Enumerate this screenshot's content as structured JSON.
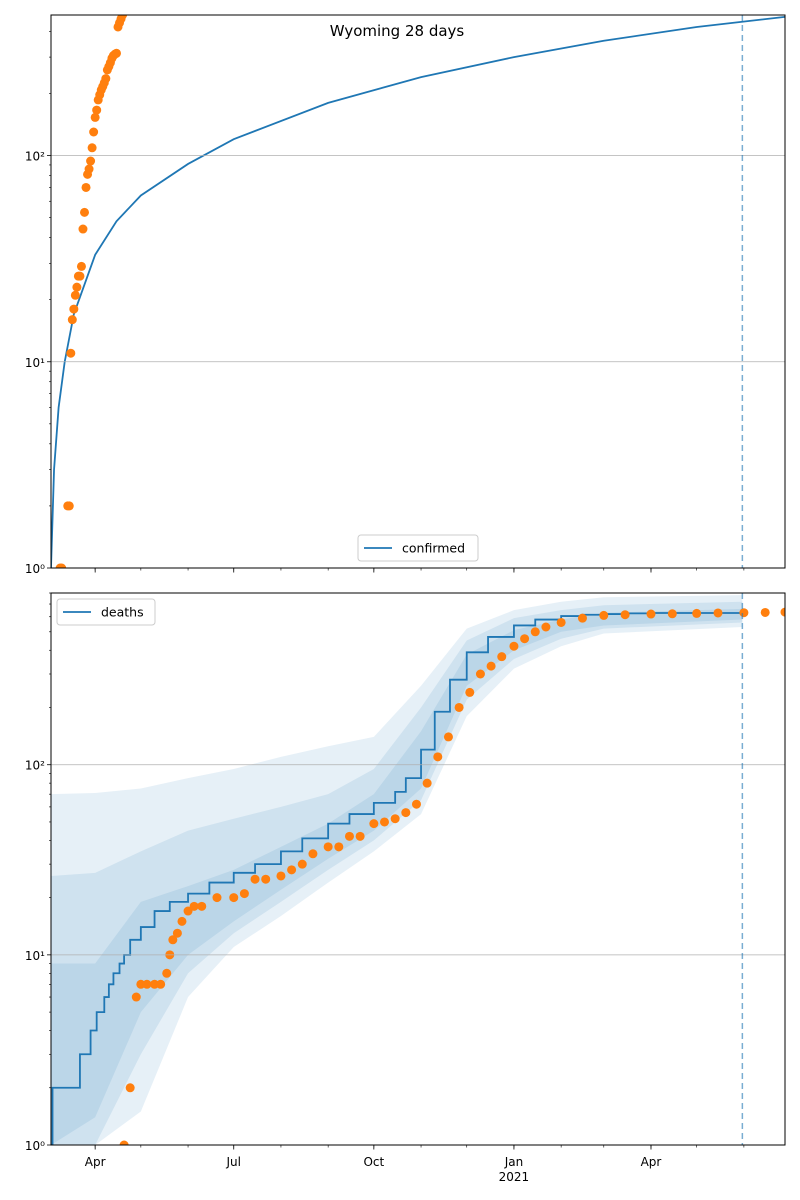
{
  "title": "Wyoming 28 days",
  "colors": {
    "line": "#1f77b4",
    "points": "#ff7f0e",
    "band": "#1f77b4",
    "grid": "#b0b0b0",
    "frame": "#000000"
  },
  "x_axis": {
    "tick_labels": [
      "Apr",
      "Jul",
      "Oct",
      "Jan",
      "Apr"
    ],
    "tick_dates": [
      "2020-04-01",
      "2020-07-01",
      "2020-10-01",
      "2021-01-01",
      "2021-04-01"
    ],
    "year_label": "2021",
    "range": [
      "2020-03-03",
      "2021-06-28"
    ],
    "forecast_date": "2021-05-31"
  },
  "chart_data": [
    {
      "type": "line",
      "title": "Wyoming 28 days",
      "yscale": "log",
      "ylim": [
        1,
        500
      ],
      "yticks": [
        {
          "value": 1,
          "label": "10⁰"
        },
        {
          "value": 10,
          "label": "10¹"
        },
        {
          "value": 100,
          "label": "10²"
        }
      ],
      "grid": true,
      "legend": {
        "position": "lower-center",
        "entries": [
          "confirmed"
        ]
      },
      "series": [
        {
          "name": "confirmed",
          "kind": "line",
          "x": [
            "2020-03-03",
            "2020-03-05",
            "2020-03-08",
            "2020-03-12",
            "2020-03-18",
            "2020-04-01",
            "2020-04-15",
            "2020-05-01",
            "2020-06-01",
            "2020-07-01",
            "2020-09-01",
            "2020-11-01",
            "2021-01-01",
            "2021-03-01",
            "2021-05-01",
            "2021-06-28"
          ],
          "y": [
            1,
            3,
            6,
            10,
            17,
            33,
            48,
            64,
            91,
            120,
            180,
            240,
            300,
            360,
            420,
            470
          ]
        },
        {
          "name": "observed confirmed",
          "kind": "scatter",
          "x": [
            "2020-03-09",
            "2020-03-10",
            "2020-03-14",
            "2020-03-15",
            "2020-03-16",
            "2020-03-17",
            "2020-03-18",
            "2020-03-19",
            "2020-03-20",
            "2020-03-21",
            "2020-03-22",
            "2020-03-23",
            "2020-03-24",
            "2020-03-25",
            "2020-03-26",
            "2020-03-27",
            "2020-03-28",
            "2020-03-29",
            "2020-03-30",
            "2020-03-31",
            "2020-04-01",
            "2020-04-02",
            "2020-04-03",
            "2020-04-04",
            "2020-04-05",
            "2020-04-06",
            "2020-04-07",
            "2020-04-08",
            "2020-04-09",
            "2020-04-10",
            "2020-04-11",
            "2020-04-12",
            "2020-04-13",
            "2020-04-14",
            "2020-04-15",
            "2020-04-16",
            "2020-04-17",
            "2020-04-18",
            "2020-04-19",
            "2020-04-20"
          ],
          "y": [
            1,
            1,
            2,
            2,
            11,
            16,
            18,
            21,
            23,
            26,
            26,
            29,
            44,
            53,
            70,
            81,
            86,
            94,
            109,
            130,
            153,
            166,
            186,
            197,
            208,
            216,
            225,
            236,
            260,
            270,
            282,
            296,
            305,
            310,
            313,
            420,
            440,
            460,
            480,
            500
          ]
        }
      ]
    },
    {
      "type": "line",
      "yscale": "log",
      "ylim": [
        1,
        800
      ],
      "yticks": [
        {
          "value": 1,
          "label": "10⁰"
        },
        {
          "value": 10,
          "label": "10¹"
        },
        {
          "value": 100,
          "label": "10²"
        }
      ],
      "grid": true,
      "legend": {
        "position": "top-left",
        "entries": [
          "deaths"
        ]
      },
      "series": [
        {
          "name": "deaths",
          "kind": "step",
          "x": [
            "2020-03-03",
            "2020-03-04",
            "2020-03-22",
            "2020-03-29",
            "2020-04-02",
            "2020-04-07",
            "2020-04-10",
            "2020-04-13",
            "2020-04-17",
            "2020-04-20",
            "2020-04-24",
            "2020-05-01",
            "2020-05-10",
            "2020-05-20",
            "2020-06-01",
            "2020-06-15",
            "2020-07-01",
            "2020-07-15",
            "2020-08-01",
            "2020-08-15",
            "2020-09-01",
            "2020-09-15",
            "2020-10-01",
            "2020-10-15",
            "2020-10-22",
            "2020-11-01",
            "2020-11-10",
            "2020-11-20",
            "2020-12-01",
            "2020-12-15",
            "2021-01-01",
            "2021-01-15",
            "2021-02-01",
            "2021-02-15",
            "2021-03-01",
            "2021-03-15",
            "2021-04-01",
            "2021-05-31"
          ],
          "y": [
            1,
            2,
            3,
            4,
            5,
            6,
            7,
            8,
            9,
            10,
            12,
            14,
            17,
            19,
            21,
            24,
            27,
            30,
            35,
            41,
            49,
            55,
            63,
            72,
            85,
            120,
            190,
            280,
            390,
            470,
            540,
            580,
            605,
            615,
            620,
            625,
            628,
            630
          ]
        },
        {
          "name": "observed deaths",
          "kind": "scatter",
          "x": [
            "2020-04-20",
            "2020-04-24",
            "2020-04-28",
            "2020-05-01",
            "2020-05-05",
            "2020-05-10",
            "2020-05-14",
            "2020-05-18",
            "2020-05-20",
            "2020-05-22",
            "2020-05-25",
            "2020-05-28",
            "2020-06-01",
            "2020-06-05",
            "2020-06-10",
            "2020-06-20",
            "2020-07-01",
            "2020-07-08",
            "2020-07-15",
            "2020-07-22",
            "2020-08-01",
            "2020-08-08",
            "2020-08-15",
            "2020-08-22",
            "2020-09-01",
            "2020-09-08",
            "2020-09-15",
            "2020-09-22",
            "2020-10-01",
            "2020-10-08",
            "2020-10-15",
            "2020-10-22",
            "2020-10-29",
            "2020-11-05",
            "2020-11-12",
            "2020-11-19",
            "2020-11-26",
            "2020-12-03",
            "2020-12-10",
            "2020-12-17",
            "2020-12-24",
            "2021-01-01",
            "2021-01-08",
            "2021-01-15",
            "2021-01-22",
            "2021-02-01",
            "2021-02-15",
            "2021-03-01",
            "2021-03-15",
            "2021-04-01",
            "2021-04-15",
            "2021-05-01",
            "2021-05-15",
            "2021-06-01",
            "2021-06-15",
            "2021-06-28"
          ],
          "y": [
            1,
            2,
            6,
            7,
            7,
            7,
            7,
            8,
            10,
            12,
            13,
            15,
            17,
            18,
            18,
            20,
            20,
            21,
            25,
            25,
            26,
            28,
            30,
            34,
            37,
            37,
            42,
            42,
            49,
            50,
            52,
            56,
            62,
            80,
            110,
            140,
            200,
            240,
            300,
            330,
            370,
            420,
            460,
            500,
            530,
            560,
            590,
            610,
            615,
            620,
            622,
            625,
            628,
            630,
            632,
            635
          ]
        }
      ],
      "bands": [
        {
          "label": "inner",
          "x": [
            "2020-03-03",
            "2020-04-01",
            "2020-05-01",
            "2020-06-01",
            "2020-07-01",
            "2020-08-01",
            "2020-09-01",
            "2020-10-01",
            "2020-11-01",
            "2020-12-01",
            "2021-01-01",
            "2021-02-01",
            "2021-03-01",
            "2021-05-31"
          ],
          "lower": [
            1,
            1.4,
            5,
            10,
            15,
            22,
            32,
            45,
            75,
            260,
            400,
            500,
            540,
            580
          ],
          "upper": [
            9,
            9,
            19,
            23,
            28,
            37,
            49,
            70,
            150,
            380,
            510,
            580,
            630,
            660
          ]
        },
        {
          "label": "middle",
          "x": [
            "2020-03-03",
            "2020-04-01",
            "2020-05-01",
            "2020-06-01",
            "2020-07-01",
            "2020-08-01",
            "2020-09-01",
            "2020-10-01",
            "2020-11-01",
            "2020-12-01",
            "2021-01-01",
            "2021-02-01",
            "2021-03-01",
            "2021-05-31"
          ],
          "lower": [
            1,
            1,
            3,
            8,
            13,
            19,
            28,
            40,
            65,
            220,
            360,
            460,
            520,
            560
          ],
          "upper": [
            26,
            27,
            35,
            45,
            52,
            60,
            70,
            95,
            200,
            450,
            590,
            650,
            690,
            720
          ]
        },
        {
          "label": "outer",
          "x": [
            "2020-03-03",
            "2020-04-01",
            "2020-05-01",
            "2020-06-01",
            "2020-07-01",
            "2020-08-01",
            "2020-09-01",
            "2020-10-01",
            "2020-11-01",
            "2020-12-01",
            "2021-01-01",
            "2021-02-01",
            "2021-03-01",
            "2021-05-31"
          ],
          "lower": [
            1,
            1,
            1.5,
            6,
            11,
            16,
            24,
            35,
            55,
            180,
            320,
            420,
            490,
            530
          ],
          "upper": [
            70,
            71,
            75,
            85,
            95,
            110,
            125,
            140,
            260,
            520,
            650,
            720,
            760,
            780
          ]
        }
      ]
    }
  ]
}
